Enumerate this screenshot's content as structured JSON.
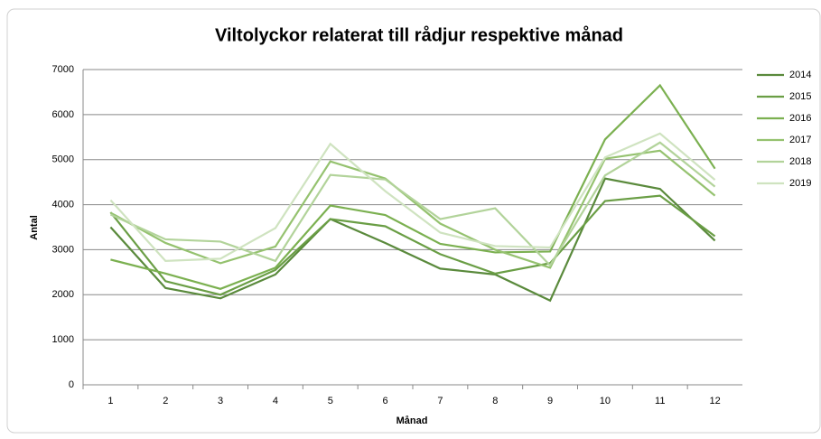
{
  "chart_data": {
    "type": "line",
    "title": "Viltolyckor relaterat till rådjur respektive månad",
    "x_label": "Månad",
    "y_label": "Antal",
    "categories": [
      "1",
      "2",
      "3",
      "4",
      "5",
      "6",
      "7",
      "8",
      "9",
      "10",
      "11",
      "12"
    ],
    "series": [
      {
        "name": "2014",
        "color": "#5a8a3c",
        "values": [
          3500,
          2150,
          1920,
          2450,
          3680,
          3150,
          2580,
          2450,
          1870,
          4580,
          4350,
          3200
        ]
      },
      {
        "name": "2015",
        "color": "#6a9e45",
        "values": [
          3830,
          2300,
          2000,
          2550,
          3680,
          3520,
          2900,
          2470,
          2700,
          4080,
          4200,
          3300
        ]
      },
      {
        "name": "2016",
        "color": "#7bb050",
        "values": [
          2780,
          2470,
          2130,
          2600,
          3980,
          3770,
          3130,
          2940,
          2960,
          5450,
          6650,
          4800
        ]
      },
      {
        "name": "2017",
        "color": "#95c26f",
        "values": [
          3820,
          3150,
          2700,
          3070,
          4960,
          4580,
          3580,
          3000,
          2600,
          5020,
          5200,
          4200
        ]
      },
      {
        "name": "2018",
        "color": "#b2d39a",
        "values": [
          3780,
          3230,
          3180,
          2750,
          4660,
          4560,
          3680,
          3920,
          2650,
          4650,
          5380,
          4400
        ]
      },
      {
        "name": "2019",
        "color": "#cfe3c0",
        "values": [
          4100,
          2750,
          2800,
          3480,
          5350,
          4300,
          3380,
          3080,
          3050,
          5050,
          5580,
          4550
        ]
      }
    ],
    "ylim": [
      0,
      7000
    ],
    "yticks": [
      0,
      1000,
      2000,
      3000,
      4000,
      5000,
      6000,
      7000
    ],
    "grid": true,
    "legend": "right"
  }
}
